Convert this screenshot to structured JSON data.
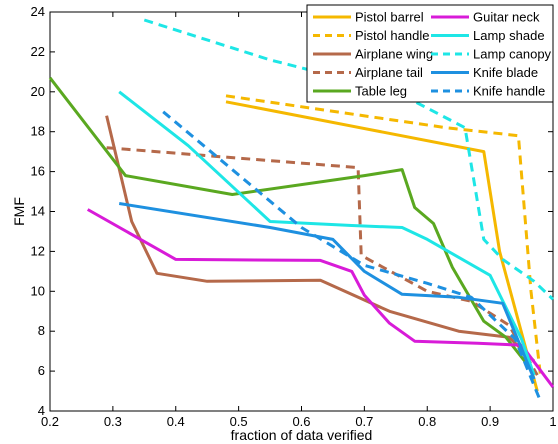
{
  "chart_data": {
    "type": "line",
    "xlabel": "fraction of data verified",
    "ylabel": "FMF",
    "xlim": [
      0.2,
      1.0
    ],
    "ylim": [
      4,
      24
    ],
    "xticks": [
      0.2,
      0.3,
      0.4,
      0.5,
      0.6,
      0.7,
      0.8,
      0.9,
      1
    ],
    "xtick_labels": [
      "0.2",
      "0.3",
      "0.4",
      "0.5",
      "0.6",
      "0.7",
      "0.8",
      "0.9",
      "1"
    ],
    "yticks": [
      4,
      6,
      8,
      10,
      12,
      14,
      16,
      18,
      20,
      22,
      24
    ],
    "ytick_labels": [
      "4",
      "6",
      "8",
      "10",
      "12",
      "14",
      "16",
      "18",
      "20",
      "22",
      "24"
    ],
    "grid": false,
    "legend_position": "top-right",
    "series": [
      {
        "name": "Pistol barrel",
        "color": "#f5b800",
        "dash": "solid",
        "points": [
          [
            0.48,
            19.5
          ],
          [
            0.89,
            17.0
          ],
          [
            0.915,
            12.0
          ],
          [
            0.975,
            5.0
          ]
        ]
      },
      {
        "name": "Pistol handle",
        "color": "#f5b800",
        "dash": "dashed",
        "points": [
          [
            0.48,
            19.8
          ],
          [
            0.83,
            18.2
          ],
          [
            0.945,
            17.8
          ],
          [
            0.965,
            10.0
          ],
          [
            0.98,
            5.8
          ]
        ]
      },
      {
        "name": "Airplane wing",
        "color": "#b5694a",
        "dash": "solid",
        "points": [
          [
            0.29,
            18.8
          ],
          [
            0.33,
            13.5
          ],
          [
            0.37,
            10.9
          ],
          [
            0.45,
            10.5
          ],
          [
            0.63,
            10.55
          ],
          [
            0.74,
            9.0
          ],
          [
            0.85,
            8.0
          ],
          [
            0.93,
            7.7
          ],
          [
            0.97,
            6.5
          ]
        ]
      },
      {
        "name": "Airplane tail",
        "color": "#b5694a",
        "dash": "dashed",
        "points": [
          [
            0.29,
            17.2
          ],
          [
            0.69,
            16.2
          ],
          [
            0.695,
            11.8
          ],
          [
            0.8,
            10.0
          ],
          [
            0.87,
            9.5
          ],
          [
            0.93,
            8.3
          ],
          [
            0.975,
            5.8
          ]
        ]
      },
      {
        "name": "Table leg",
        "color": "#5aa820",
        "dash": "solid",
        "points": [
          [
            0.2,
            20.7
          ],
          [
            0.32,
            15.8
          ],
          [
            0.49,
            14.85
          ],
          [
            0.7,
            15.8
          ],
          [
            0.76,
            16.1
          ],
          [
            0.78,
            14.2
          ],
          [
            0.81,
            13.4
          ],
          [
            0.84,
            11.2
          ],
          [
            0.89,
            8.5
          ],
          [
            0.925,
            7.7
          ],
          [
            0.96,
            6.3
          ]
        ]
      },
      {
        "name": "Guitar neck",
        "color": "#d81bd8",
        "dash": "solid",
        "points": [
          [
            0.26,
            14.1
          ],
          [
            0.4,
            11.6
          ],
          [
            0.63,
            11.55
          ],
          [
            0.68,
            11.0
          ],
          [
            0.7,
            9.8
          ],
          [
            0.74,
            8.4
          ],
          [
            0.78,
            7.5
          ],
          [
            0.88,
            7.4
          ],
          [
            0.95,
            7.3
          ],
          [
            1.0,
            5.2
          ]
        ]
      },
      {
        "name": "Lamp shade",
        "color": "#1ee6e6",
        "dash": "solid",
        "points": [
          [
            0.31,
            20.0
          ],
          [
            0.42,
            17.3
          ],
          [
            0.55,
            13.5
          ],
          [
            0.68,
            13.3
          ],
          [
            0.76,
            13.2
          ],
          [
            0.8,
            12.6
          ],
          [
            0.9,
            10.8
          ],
          [
            0.95,
            7.6
          ],
          [
            0.97,
            5.8
          ]
        ]
      },
      {
        "name": "Lamp canopy",
        "color": "#1ee6e6",
        "dash": "dashed",
        "points": [
          [
            0.35,
            23.6
          ],
          [
            0.55,
            21.6
          ],
          [
            0.75,
            20.0
          ],
          [
            0.86,
            18.2
          ],
          [
            0.89,
            12.6
          ],
          [
            0.92,
            11.6
          ],
          [
            0.97,
            10.5
          ],
          [
            1.0,
            9.6
          ]
        ]
      },
      {
        "name": "Knife blade",
        "color": "#1e90e0",
        "dash": "solid",
        "points": [
          [
            0.31,
            14.4
          ],
          [
            0.55,
            13.2
          ],
          [
            0.65,
            12.6
          ],
          [
            0.7,
            11.0
          ],
          [
            0.76,
            9.85
          ],
          [
            0.85,
            9.7
          ],
          [
            0.92,
            9.4
          ],
          [
            0.97,
            5.6
          ]
        ]
      },
      {
        "name": "Knife handle",
        "color": "#1e90e0",
        "dash": "dashed",
        "points": [
          [
            0.38,
            19.0
          ],
          [
            0.6,
            13.2
          ],
          [
            0.7,
            11.3
          ],
          [
            0.8,
            10.4
          ],
          [
            0.87,
            9.7
          ],
          [
            0.94,
            7.6
          ],
          [
            0.98,
            4.5
          ]
        ]
      }
    ],
    "legend_columns": [
      [
        "Pistol barrel",
        "Pistol handle",
        "Airplane wing",
        "Airplane tail",
        "Table leg"
      ],
      [
        "Guitar neck",
        "Lamp shade",
        "Lamp canopy",
        "Knife blade",
        "Knife handle"
      ]
    ]
  }
}
